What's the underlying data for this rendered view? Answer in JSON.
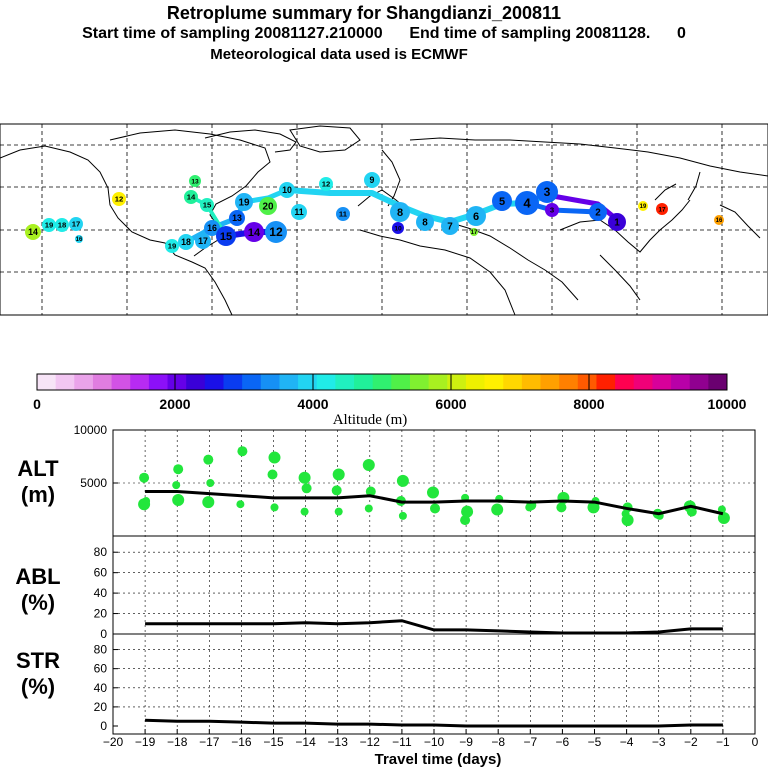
{
  "titles": {
    "line1": "Retroplume summary for Shangdianzi_200811",
    "line2": "Start time of sampling 20081127.210000      End time of sampling 20081128.      0",
    "line3": "Meteorological data used is ECMWF"
  },
  "colorbar": {
    "label": "Altitude (m)",
    "tick_labels": [
      "0",
      "2000",
      "4000",
      "6000",
      "8000",
      "10000"
    ],
    "colors": [
      "#f7e4f7",
      "#f2c6f2",
      "#eaa3ea",
      "#e07de0",
      "#d252e5",
      "#b72bf2",
      "#8c10f8",
      "#6500e8",
      "#3a00d8",
      "#1a10e8",
      "#0a3cf0",
      "#0a66f5",
      "#1690f5",
      "#20b4f5",
      "#22d4f2",
      "#20ece8",
      "#20f0c0",
      "#20f09a",
      "#30f070",
      "#50f048",
      "#80f030",
      "#a8f020",
      "#cef010",
      "#eef000",
      "#fff000",
      "#ffd800",
      "#ffbc00",
      "#ffa000",
      "#ff8000",
      "#ff5a00",
      "#ff2000",
      "#ff0050",
      "#f00078",
      "#d8009a",
      "#b800a8",
      "#900090",
      "#6a0070"
    ]
  },
  "map": {
    "markers": [
      {
        "label": "14",
        "c": "#a8f020"
      },
      {
        "label": "19",
        "c": "#20ece8"
      },
      {
        "label": "18",
        "c": "#20ece8"
      },
      {
        "label": "17",
        "c": "#22d4f2"
      },
      {
        "label": "16",
        "c": "#22d4f2"
      },
      {
        "label": "12",
        "c": "#fff000"
      },
      {
        "label": "13",
        "c": "#30f070"
      },
      {
        "label": "14",
        "c": "#20f09a"
      },
      {
        "label": "15",
        "c": "#20f0c0"
      },
      {
        "label": "19",
        "c": "#20ece8"
      },
      {
        "label": "18",
        "c": "#22d4f2"
      },
      {
        "label": "17",
        "c": "#20b4f5"
      },
      {
        "label": "16",
        "c": "#1690f5"
      },
      {
        "label": "15",
        "c": "#0a3cf0"
      },
      {
        "label": "14",
        "c": "#6500e8"
      },
      {
        "label": "13",
        "c": "#0a66f5"
      },
      {
        "label": "12",
        "c": "#1690f5"
      },
      {
        "label": "19",
        "c": "#20b4f5"
      },
      {
        "label": "20",
        "c": "#50f048"
      },
      {
        "label": "10",
        "c": "#22d4f2"
      },
      {
        "label": "11",
        "c": "#22d4f2"
      },
      {
        "label": "12",
        "c": "#20ece8"
      },
      {
        "label": "11",
        "c": "#1690f5"
      },
      {
        "label": "9",
        "c": "#22d4f2"
      },
      {
        "label": "8",
        "c": "#20b4f5"
      },
      {
        "label": "10",
        "c": "#1a10e8"
      },
      {
        "label": "8",
        "c": "#20b4f5"
      },
      {
        "label": "7",
        "c": "#20b4f5"
      },
      {
        "label": "6",
        "c": "#20b4f5"
      },
      {
        "label": "5",
        "c": "#0a66f5"
      },
      {
        "label": "4",
        "c": "#0a66f5"
      },
      {
        "label": "3",
        "c": "#0a66f5"
      },
      {
        "label": "3",
        "c": "#6500e8"
      },
      {
        "label": "2",
        "c": "#0a66f5"
      },
      {
        "label": "1",
        "c": "#3a00d8"
      },
      {
        "label": "19",
        "c": "#fff000"
      },
      {
        "label": "17",
        "c": "#ff2000"
      },
      {
        "label": "16",
        "c": "#ffa000"
      },
      {
        "label": "17",
        "c": "#80f030"
      }
    ]
  },
  "panels": {
    "alt": {
      "name": "ALT",
      "unit": "(m)",
      "yticks": [
        "10000",
        "5000"
      ]
    },
    "abl": {
      "name": "ABL",
      "unit": "(%)",
      "yticks": [
        "80",
        "60",
        "40",
        "20",
        "0"
      ]
    },
    "str": {
      "name": "STR",
      "unit": "(%)",
      "yticks": [
        "80",
        "60",
        "40",
        "20",
        "0"
      ]
    }
  },
  "xaxis": {
    "label": "Travel time (days)",
    "tick_labels": [
      "−20",
      "−19",
      "−18",
      "−17",
      "−16",
      "−15",
      "−14",
      "−13",
      "−12",
      "−11",
      "−10",
      "−9",
      "−8",
      "−7",
      "−6",
      "−5",
      "−4",
      "−3",
      "−2",
      "−1",
      "0"
    ]
  },
  "chart_data": [
    {
      "type": "line",
      "title": "ALT",
      "ylabel": "(m)",
      "xlabel": "Travel time (days)",
      "ylim": [
        0,
        10000
      ],
      "xlim": [
        -20,
        0
      ],
      "x": [
        -19,
        -18,
        -17,
        -16,
        -15,
        -14,
        -13,
        -12,
        -11,
        -10,
        -9,
        -8,
        -7,
        -6,
        -5,
        -4,
        -3,
        -2,
        -1
      ],
      "series": [
        {
          "name": "mean altitude",
          "values": [
            4200,
            4200,
            4000,
            3800,
            3600,
            3600,
            3600,
            3800,
            3200,
            3200,
            3300,
            3300,
            3200,
            3300,
            3200,
            2600,
            2100,
            2800,
            2100
          ]
        }
      ],
      "scatter": {
        "x": [
          -19,
          -19,
          -19,
          -18,
          -18,
          -18,
          -17,
          -17,
          -17,
          -16,
          -16,
          -15,
          -15,
          -15,
          -14,
          -14,
          -14,
          -13,
          -13,
          -13,
          -12,
          -12,
          -12,
          -11,
          -11,
          -11,
          -10,
          -10,
          -9,
          -9,
          -9,
          -8,
          -8,
          -7,
          -7,
          -6,
          -6,
          -5,
          -5,
          -4,
          -4,
          -4,
          -3,
          -3,
          -2,
          -2,
          -1,
          -1
        ],
        "y": [
          5500,
          3300,
          3000,
          6300,
          4800,
          3400,
          7200,
          5000,
          3200,
          8000,
          3000,
          7400,
          5800,
          2700,
          5500,
          4500,
          2300,
          5800,
          4300,
          2300,
          6700,
          4200,
          2600,
          5200,
          3300,
          1900,
          4100,
          2600,
          3600,
          2300,
          1500,
          3500,
          2500,
          2900,
          2700,
          3600,
          2700,
          3300,
          2700,
          2700,
          2100,
          1500,
          2100,
          1900,
          2800,
          2300,
          2500,
          1700
        ]
      }
    },
    {
      "type": "line",
      "title": "ABL",
      "ylabel": "(%)",
      "xlabel": "Travel time (days)",
      "ylim": [
        0,
        90
      ],
      "xlim": [
        -20,
        0
      ],
      "x": [
        -19,
        -18,
        -17,
        -16,
        -15,
        -14,
        -13,
        -12,
        -11,
        -10,
        -9,
        -8,
        -7,
        -6,
        -5,
        -4,
        -3,
        -2,
        -1
      ],
      "series": [
        {
          "name": "ABL fraction",
          "values": [
            10,
            10,
            10,
            10,
            10,
            11,
            10,
            11,
            13,
            4,
            4,
            3,
            2,
            1,
            1,
            1,
            2,
            5,
            5
          ]
        }
      ]
    },
    {
      "type": "line",
      "title": "STR",
      "ylabel": "(%)",
      "xlabel": "Travel time (days)",
      "ylim": [
        0,
        90
      ],
      "xlim": [
        -20,
        0
      ],
      "x": [
        -19,
        -18,
        -17,
        -16,
        -15,
        -14,
        -13,
        -12,
        -11,
        -10,
        -9,
        -8,
        -7,
        -6,
        -5,
        -4,
        -3,
        -2,
        -1
      ],
      "series": [
        {
          "name": "stratospheric fraction",
          "values": [
            6,
            5,
            5,
            4,
            3,
            3,
            2,
            2,
            1,
            1,
            0,
            0,
            0,
            0,
            0,
            0,
            0,
            1,
            1
          ]
        }
      ]
    }
  ]
}
